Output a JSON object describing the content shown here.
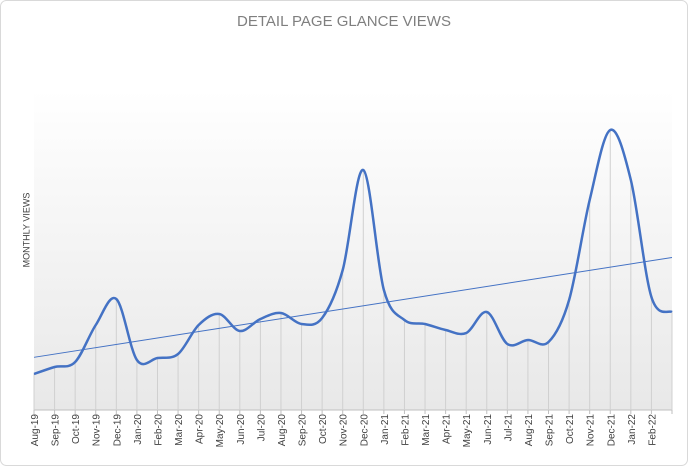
{
  "chart_data": {
    "type": "line",
    "title": "DETAIL PAGE GLANCE VIEWS",
    "y_label": "MONTHLY VIEWS",
    "categories": [
      "Aug-19",
      "Sep-19",
      "Oct-19",
      "Nov-19",
      "Dec-19",
      "Jan-20",
      "Feb-20",
      "Mar-20",
      "Apr-20",
      "May-20",
      "Jun-20",
      "Jul-20",
      "Aug-20",
      "Sep-20",
      "Oct-20",
      "Nov-20",
      "Dec-20",
      "Jan-21",
      "Feb-21",
      "Mar-21",
      "Apr-21",
      "May-21",
      "Jun-21",
      "Jul-21",
      "Aug-21",
      "Sep-21",
      "Oct-21",
      "Nov-21",
      "Dec-21",
      "Jan-22",
      "Feb-22",
      null
    ],
    "values": [
      36,
      43,
      48,
      85,
      111,
      50,
      52,
      56,
      85,
      96,
      79,
      91,
      97,
      86,
      92,
      140,
      240,
      120,
      90,
      86,
      80,
      77,
      98,
      66,
      70,
      68,
      110,
      210,
      280,
      230,
      113,
      98
    ],
    "color": "#4472c4",
    "ylim": [
      0,
      300
    ],
    "trendline": true,
    "drop_lines": true
  }
}
